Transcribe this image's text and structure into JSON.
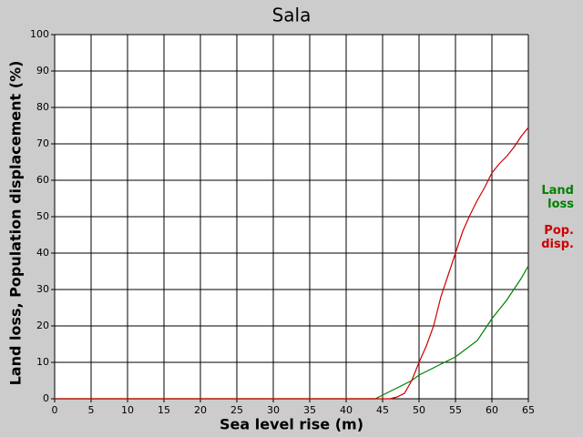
{
  "chart_data": {
    "type": "line",
    "title": "Sala",
    "xlabel": "Sea level rise (m)",
    "ylabel": "Land loss, Population displacement (%)",
    "x": [
      0,
      43,
      44,
      45,
      46,
      47,
      48,
      49,
      50,
      51,
      52,
      53,
      54,
      55,
      56,
      57,
      58,
      59,
      60,
      61,
      62,
      63,
      64,
      65
    ],
    "series": [
      {
        "name": "Land loss",
        "color": "#008000",
        "values": [
          0,
          0,
          0,
          1,
          2,
          3,
          4,
          5,
          6.5,
          7.5,
          8.5,
          9.5,
          10.5,
          11.5,
          13,
          14.5,
          16,
          19,
          22,
          24.5,
          27,
          30,
          33,
          36.5
        ]
      },
      {
        "name": "Pop. disp.",
        "color": "#cc0000",
        "values": [
          0,
          0,
          0,
          0,
          0,
          0.5,
          1.5,
          5,
          10,
          14.5,
          20,
          28,
          34,
          40,
          46,
          50.5,
          54.5,
          58,
          62,
          64.5,
          66.5,
          69,
          72,
          74.5
        ]
      }
    ],
    "xlim": [
      0,
      65
    ],
    "xticks": [
      0,
      5,
      10,
      15,
      20,
      25,
      30,
      35,
      40,
      45,
      50,
      55,
      60,
      65
    ],
    "ylim": [
      0,
      100
    ],
    "yticks": [
      0,
      10,
      20,
      30,
      40,
      50,
      60,
      70,
      80,
      90,
      100
    ],
    "grid": true
  }
}
